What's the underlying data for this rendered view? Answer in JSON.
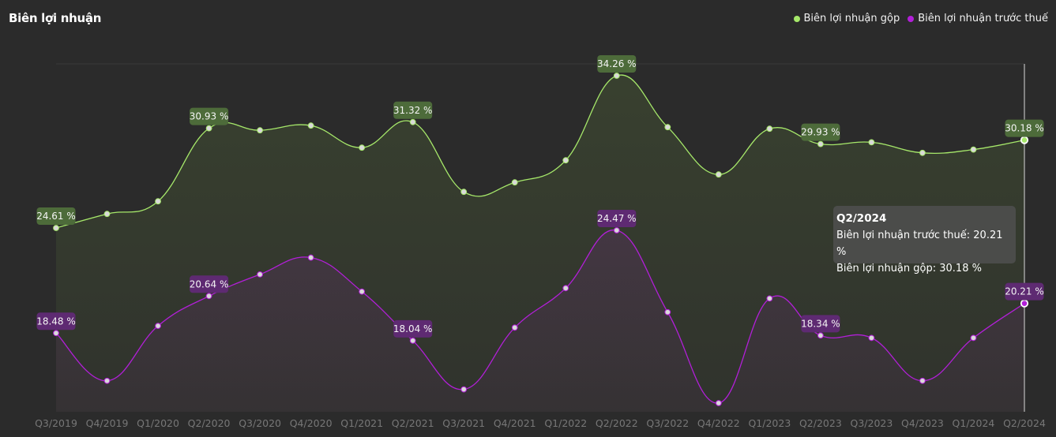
{
  "header": {
    "title": "Biên lợi nhuận"
  },
  "colors": {
    "gross": "#a6e86a",
    "pretax": "#b21fd8",
    "gross_label_bg": "#4d6b3a",
    "pretax_label_bg": "#5e2a72",
    "axis_label": "#777777"
  },
  "chart_data": {
    "type": "line",
    "title": "Biên lợi nhuận",
    "categories": [
      "Q3/2019",
      "Q4/2019",
      "Q1/2020",
      "Q2/2020",
      "Q3/2020",
      "Q4/2020",
      "Q1/2021",
      "Q2/2021",
      "Q3/2021",
      "Q4/2021",
      "Q1/2022",
      "Q2/2022",
      "Q3/2022",
      "Q4/2022",
      "Q1/2023",
      "Q2/2023",
      "Q3/2023",
      "Q4/2023",
      "Q1/2024",
      "Q2/2024"
    ],
    "series": [
      {
        "key": "gross",
        "name": "Biên lợi nhuận gộp",
        "values": [
          24.61,
          25.5,
          26.3,
          30.93,
          30.8,
          31.1,
          29.7,
          31.32,
          26.9,
          27.5,
          28.9,
          34.26,
          31.0,
          28.0,
          30.9,
          29.93,
          30.04,
          29.37,
          29.58,
          30.18
        ],
        "labeled_indices": [
          0,
          3,
          7,
          11,
          15,
          19
        ]
      },
      {
        "key": "pretax",
        "name": "Biên lợi nhuận trước thuế",
        "values": [
          18.48,
          15.7,
          18.9,
          20.64,
          21.9,
          22.88,
          20.9,
          18.04,
          15.2,
          18.8,
          21.1,
          24.47,
          19.7,
          14.4,
          20.5,
          18.34,
          18.2,
          15.7,
          18.2,
          20.21
        ],
        "labeled_indices": [
          0,
          3,
          7,
          11,
          15,
          19
        ]
      }
    ],
    "value_suffix": " %",
    "highlight_index": 19
  },
  "tooltip": {
    "title": "Q2/2024",
    "lines": [
      {
        "label": "Biên lợi nhuận trước thuế:",
        "value": "20.21 %"
      },
      {
        "label": "Biên lợi nhuận gộp:",
        "value": "30.18 %"
      }
    ]
  }
}
